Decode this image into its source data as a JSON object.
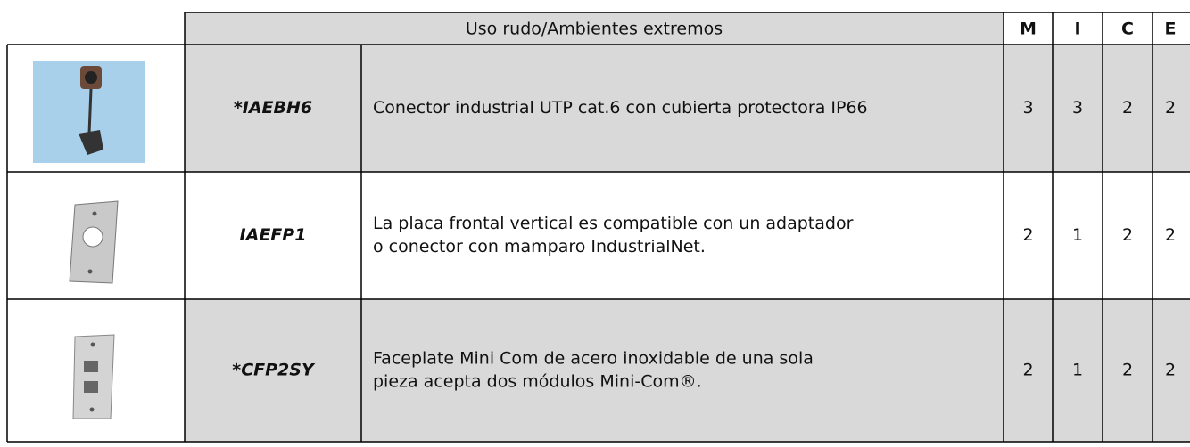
{
  "header": {
    "title": "Uso rudo/Ambientes extremos",
    "columns": [
      "M",
      "I",
      "C",
      "E"
    ]
  },
  "rows": [
    {
      "code": "*IAEBH6",
      "description": [
        "Conector industrial UTP cat.6 con cubierta protectora IP66"
      ],
      "values": [
        3,
        3,
        2,
        2
      ]
    },
    {
      "code": "IAEFP1",
      "description": [
        "La placa frontal vertical es compatible con un adaptador",
        "o conector con mamparo IndustrialNet."
      ],
      "values": [
        2,
        1,
        2,
        2
      ]
    },
    {
      "code": "*CFP2SY",
      "description": [
        "Faceplate Mini Com de acero inoxidable de una sola",
        "pieza acepta dos módulos Mini-Com®."
      ],
      "values": [
        2,
        1,
        2,
        2
      ]
    }
  ]
}
